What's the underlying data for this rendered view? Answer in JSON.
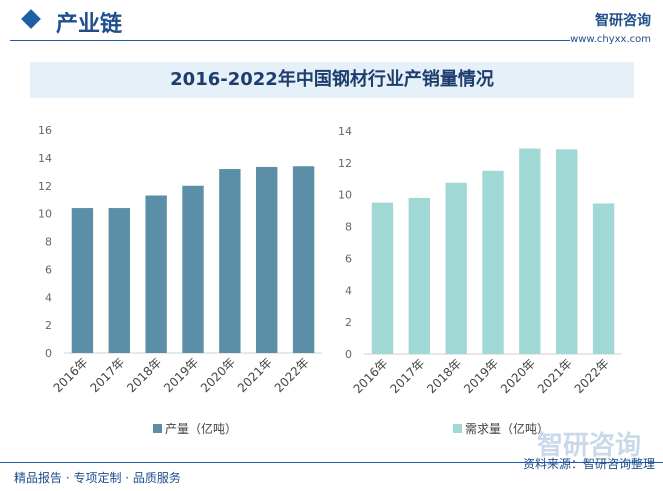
{
  "header": {
    "section": "产业链",
    "logo": "智研咨询",
    "url": "www.chyxx.com"
  },
  "title": "2016-2022年中国钢材行业产销量情况",
  "footer": {
    "left": "精品报告 · 专项定制 · 品质服务",
    "right": "资料来源：智研咨询整理",
    "watermark": "智研咨询"
  },
  "colors": {
    "production": "#5b8fa8",
    "demand": "#a0d8d6"
  },
  "chart_data": [
    {
      "type": "bar",
      "categories": [
        "2016年",
        "2017年",
        "2018年",
        "2019年",
        "2020年",
        "2021年",
        "2022年"
      ],
      "series": [
        {
          "name": "产量（亿吨）",
          "values": [
            10.4,
            10.4,
            11.3,
            12.0,
            13.2,
            13.35,
            13.4
          ]
        }
      ],
      "ylim": [
        0,
        16
      ],
      "yticks": [
        0,
        2,
        4,
        6,
        8,
        10,
        12,
        14,
        16
      ],
      "legend": "bottom"
    },
    {
      "type": "bar",
      "categories": [
        "2016年",
        "2017年",
        "2018年",
        "2019年",
        "2020年",
        "2021年",
        "2022年"
      ],
      "series": [
        {
          "name": "需求量（亿吨）",
          "values": [
            9.5,
            9.8,
            10.75,
            11.5,
            12.9,
            12.85,
            9.45
          ]
        }
      ],
      "ylim": [
        0,
        14
      ],
      "yticks": [
        0,
        2,
        4,
        6,
        8,
        10,
        12,
        14
      ],
      "legend": "bottom"
    }
  ]
}
